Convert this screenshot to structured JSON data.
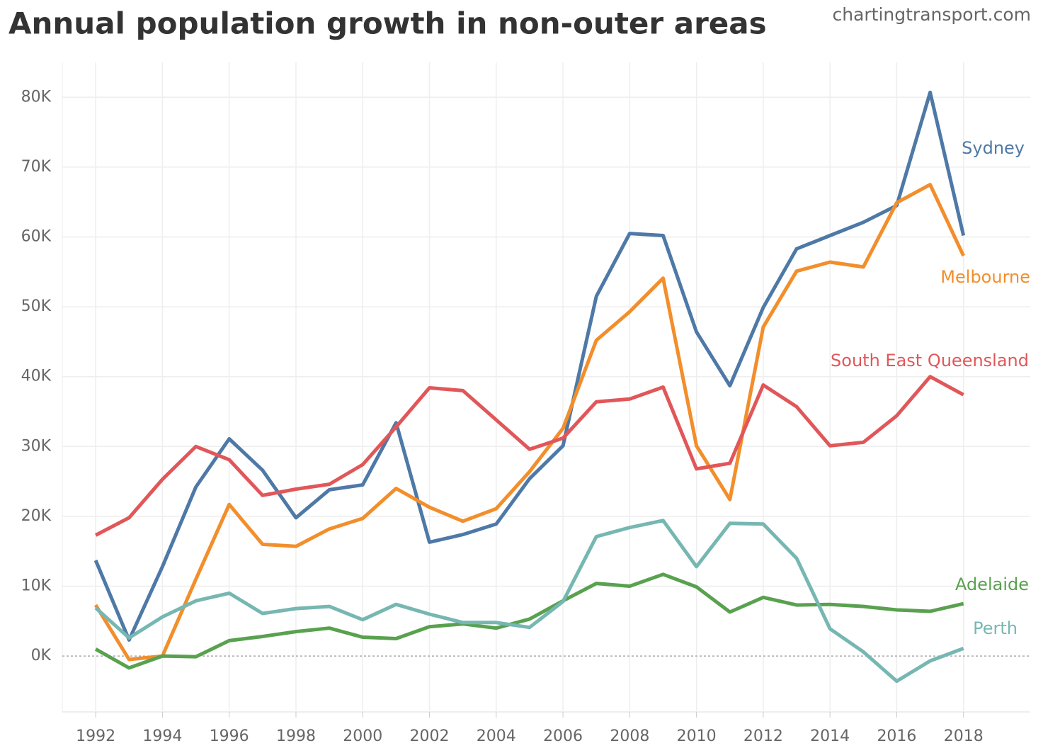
{
  "chart_data": {
    "type": "line",
    "title": "Annual population growth in non-outer areas",
    "source": "chartingtransport.com",
    "x": [
      1992,
      1993,
      1994,
      1995,
      1996,
      1997,
      1998,
      1999,
      2000,
      2001,
      2002,
      2003,
      2004,
      2005,
      2006,
      2007,
      2008,
      2009,
      2010,
      2011,
      2012,
      2013,
      2014,
      2015,
      2016,
      2017,
      2018
    ],
    "xlim": [
      1991,
      2020
    ],
    "xticks": [
      1992,
      1994,
      1996,
      1998,
      2000,
      2002,
      2004,
      2006,
      2008,
      2010,
      2012,
      2014,
      2016,
      2018
    ],
    "ylim": [
      -8000,
      85000
    ],
    "yticks": [
      {
        "value": 0,
        "label": "0K"
      },
      {
        "value": 10000,
        "label": "10K"
      },
      {
        "value": 20000,
        "label": "20K"
      },
      {
        "value": 30000,
        "label": "30K"
      },
      {
        "value": 40000,
        "label": "40K"
      },
      {
        "value": 50000,
        "label": "50K"
      },
      {
        "value": 60000,
        "label": "60K"
      },
      {
        "value": 70000,
        "label": "70K"
      },
      {
        "value": 80000,
        "label": "80K"
      }
    ],
    "grid": true,
    "series": [
      {
        "name": "Sydney",
        "color": "#4e79a7",
        "values": [
          13700,
          2300,
          12800,
          24200,
          31100,
          26600,
          19800,
          23800,
          24500,
          33400,
          16300,
          17400,
          18900,
          25400,
          30100,
          51500,
          60500,
          60200,
          46400,
          38700,
          49900,
          58300,
          60200,
          62100,
          64500,
          80700,
          60200
        ]
      },
      {
        "name": "Melbourne",
        "color": "#f28e2b",
        "values": [
          7300,
          -500,
          0,
          11000,
          21700,
          16000,
          15700,
          18200,
          19700,
          24000,
          21300,
          19300,
          21100,
          26400,
          32600,
          45200,
          49300,
          54100,
          30100,
          22400,
          47100,
          55100,
          56400,
          55700,
          64900,
          67500,
          57300
        ]
      },
      {
        "name": "South East Queensland",
        "color": "#e15759",
        "values": [
          17300,
          19800,
          25300,
          30000,
          28100,
          23000,
          23900,
          24600,
          27400,
          32800,
          38400,
          38000,
          33800,
          29600,
          31200,
          36400,
          36800,
          38500,
          26800,
          27600,
          38800,
          35700,
          30100,
          30600,
          34400,
          40000,
          37400
        ]
      },
      {
        "name": "Adelaide",
        "color": "#59a14f",
        "values": [
          1000,
          -1700,
          0,
          -100,
          2200,
          2800,
          3500,
          4000,
          2700,
          2500,
          4200,
          4600,
          4000,
          5300,
          7900,
          10400,
          10000,
          11700,
          9900,
          6300,
          8400,
          7300,
          7400,
          7100,
          6600,
          6400,
          7500
        ]
      },
      {
        "name": "Perth",
        "color": "#76b7b2",
        "values": [
          6900,
          2600,
          5600,
          7900,
          9000,
          6100,
          6800,
          7100,
          5200,
          7400,
          6000,
          4800,
          4800,
          4100,
          7800,
          17100,
          18400,
          19400,
          12800,
          19000,
          18900,
          14000,
          3900,
          600,
          -3600,
          -700,
          1100
        ]
      }
    ]
  }
}
